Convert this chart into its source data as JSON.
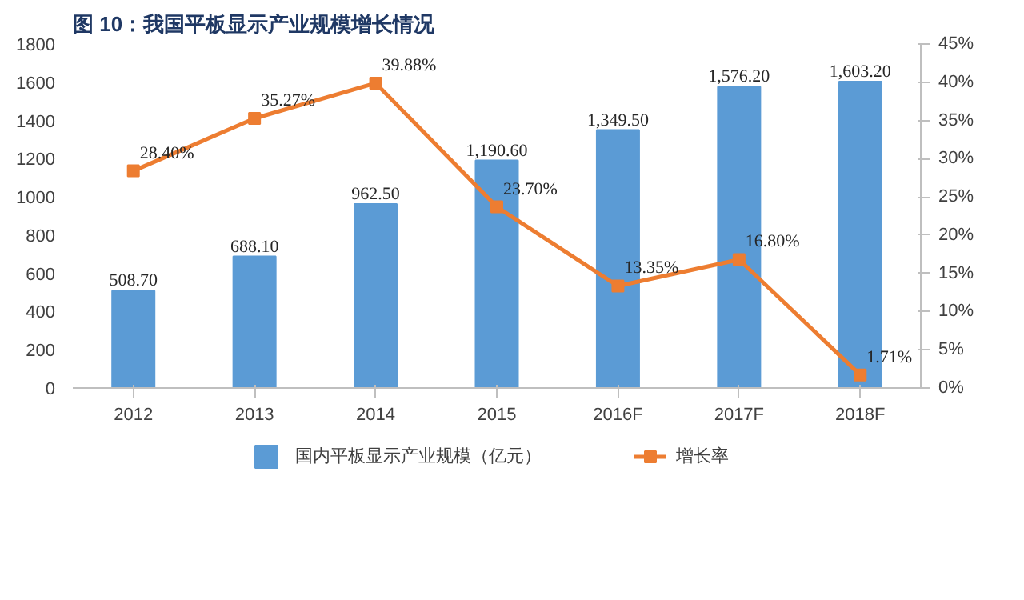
{
  "chart_data": {
    "type": "bar",
    "title": "图 10：我国平板显示产业规模增长情况",
    "categories": [
      "2012",
      "2013",
      "2014",
      "2015",
      "2016F",
      "2017F",
      "2018F"
    ],
    "series": [
      {
        "name": "国内平板显示产业规模（亿元）",
        "color": "#5b9bd5",
        "values": [
          508.7,
          688.1,
          962.5,
          1190.6,
          1349.5,
          1576.2,
          1603.2
        ],
        "value_labels": [
          "508.70",
          "688.10",
          "962.50",
          "1,190.60",
          "1,349.50",
          "1,576.20",
          "1,603.20"
        ]
      },
      {
        "name": "增长率",
        "type": "line",
        "axis": "y2",
        "color": "#ed7d31",
        "marker": "square",
        "values": [
          28.4,
          35.27,
          39.88,
          23.7,
          13.35,
          16.8,
          1.71
        ],
        "value_labels": [
          "28.40%",
          "35.27%",
          "39.88%",
          "23.70%",
          "13.35%",
          "16.80%",
          "1.71%"
        ]
      }
    ],
    "ylim": [
      0,
      1800
    ],
    "yticks": [
      0,
      200,
      400,
      600,
      800,
      1000,
      1200,
      1400,
      1600,
      1800
    ],
    "y2lim": [
      0,
      45
    ],
    "y2ticks": [
      {
        "value": 0,
        "label": "0%"
      },
      {
        "value": 5,
        "label": "5%"
      },
      {
        "value": 10,
        "label": "10%"
      },
      {
        "value": 15,
        "label": "15%"
      },
      {
        "value": 20,
        "label": "20%"
      },
      {
        "value": 25,
        "label": "25%"
      },
      {
        "value": 30,
        "label": "30%"
      },
      {
        "value": 35,
        "label": "35%"
      },
      {
        "value": 40,
        "label": "40%"
      },
      {
        "value": 45,
        "label": "45%"
      }
    ],
    "legend": "bottom",
    "grid": false
  }
}
